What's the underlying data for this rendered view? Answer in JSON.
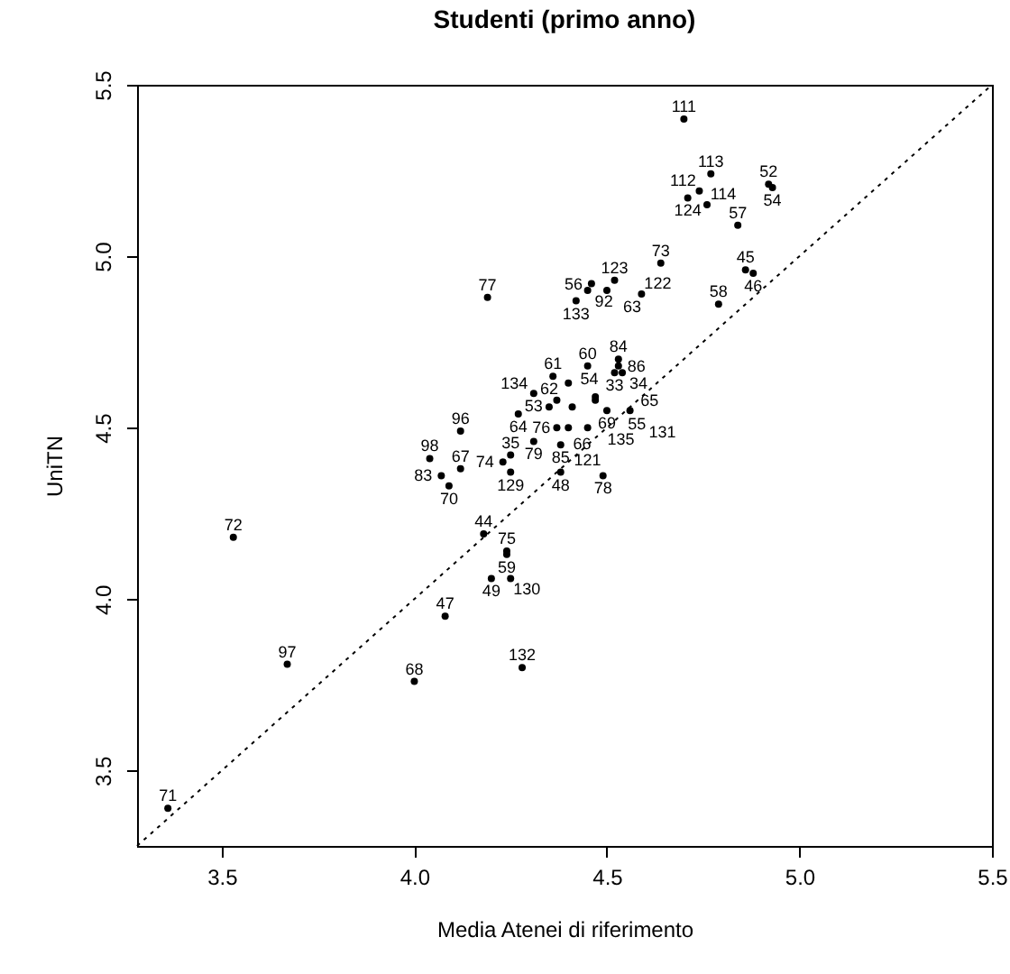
{
  "chart_data": {
    "type": "scatter",
    "title": "Studenti (primo anno)",
    "xlabel": "Media Atenei di riferimento",
    "ylabel": "UniTN",
    "xlim": [
      3.28,
      5.5
    ],
    "ylim": [
      3.28,
      5.5
    ],
    "xticks": [
      3.5,
      {
        "value": 4,
        "label": "4.0"
      },
      4.5,
      {
        "value": 5,
        "label": "5.0"
      },
      5.5
    ],
    "yticks": [
      3.5,
      {
        "value": 4,
        "label": "4.0"
      },
      4.5,
      {
        "value": 5,
        "label": "5.0"
      },
      5.5
    ],
    "series": [
      {
        "marker": "circle",
        "color": "#000000",
        "x": [
          4.7,
          4.77,
          4.74,
          4.71,
          4.76,
          4.92,
          4.93,
          4.84,
          4.64,
          4.86,
          4.88,
          4.79,
          4.19,
          4.52,
          4.46,
          4.45,
          4.5,
          4.42,
          4.59,
          4.45,
          4.53,
          4.53,
          4.52,
          4.54,
          4.36,
          4.4,
          4.31,
          4.37,
          4.47,
          4.47,
          4.35,
          4.41,
          4.5,
          4.56,
          4.27,
          4.37,
          4.4,
          4.45,
          4.12,
          4.31,
          4.38,
          4.04,
          4.25,
          4.23,
          4.12,
          4.25,
          4.38,
          4.49,
          4.07,
          4.09,
          3.53,
          4.18,
          4.24,
          4.24,
          4.2,
          4.25,
          4.08,
          3.67,
          4.0,
          4.28,
          3.36
        ],
        "values": [
          5.4,
          5.24,
          5.19,
          5.17,
          5.15,
          5.21,
          5.2,
          5.09,
          4.98,
          4.96,
          4.95,
          4.86,
          4.88,
          4.93,
          4.92,
          4.9,
          4.9,
          4.87,
          4.89,
          4.68,
          4.7,
          4.68,
          4.66,
          4.66,
          4.65,
          4.63,
          4.6,
          4.58,
          4.59,
          4.58,
          4.56,
          4.56,
          4.55,
          4.55,
          4.54,
          4.5,
          4.5,
          4.5,
          4.49,
          4.46,
          4.45,
          4.41,
          4.42,
          4.4,
          4.38,
          4.37,
          4.37,
          4.36,
          4.36,
          4.33,
          4.18,
          4.19,
          4.14,
          4.13,
          4.06,
          4.06,
          3.95,
          3.81,
          3.76,
          3.8,
          3.39
        ]
      },
      {
        "type": "line",
        "color": "#000000",
        "line_style": "dotted",
        "x": [
          3.28,
          5.5
        ],
        "values": [
          3.28,
          5.5
        ]
      }
    ],
    "annotations": [
      {
        "text": "111",
        "x": 4.7,
        "y": 5.4
      },
      {
        "text": "113",
        "x": 4.77,
        "y": 5.24
      },
      {
        "text": "112",
        "x": 4.74,
        "y": 5.19
      },
      {
        "text": "124",
        "x": 4.71,
        "y": 5.17
      },
      {
        "text": "114",
        "x": 4.76,
        "y": 5.15
      },
      {
        "text": "52",
        "x": 4.92,
        "y": 5.21
      },
      {
        "text": "54",
        "x": 4.93,
        "y": 5.2
      },
      {
        "text": "57",
        "x": 4.84,
        "y": 5.09
      },
      {
        "text": "73",
        "x": 4.64,
        "y": 4.98
      },
      {
        "text": "45",
        "x": 4.86,
        "y": 4.96
      },
      {
        "text": "46",
        "x": 4.88,
        "y": 4.95
      },
      {
        "text": "58",
        "x": 4.79,
        "y": 4.86
      },
      {
        "text": "77",
        "x": 4.19,
        "y": 4.88
      },
      {
        "text": "123",
        "x": 4.52,
        "y": 4.93
      },
      {
        "text": "56",
        "x": 4.46,
        "y": 4.92
      },
      {
        "text": "92",
        "x": 4.45,
        "y": 4.9
      },
      {
        "text": "63",
        "x": 4.5,
        "y": 4.9
      },
      {
        "text": "133",
        "x": 4.42,
        "y": 4.87
      },
      {
        "text": "122",
        "x": 4.59,
        "y": 4.89
      },
      {
        "text": "60",
        "x": 4.45,
        "y": 4.68
      },
      {
        "text": "84",
        "x": 4.53,
        "y": 4.7
      },
      {
        "text": "86",
        "x": 4.53,
        "y": 4.68
      },
      {
        "text": "33",
        "x": 4.52,
        "y": 4.66
      },
      {
        "text": "34",
        "x": 4.54,
        "y": 4.66
      },
      {
        "text": "61",
        "x": 4.36,
        "y": 4.65
      },
      {
        "text": "134",
        "x": 4.4,
        "y": 4.63
      },
      {
        "text": "53",
        "x": 4.31,
        "y": 4.6
      },
      {
        "text": "54",
        "x": 4.37,
        "y": 4.58
      },
      {
        "text": "55",
        "x": 4.47,
        "y": 4.59
      },
      {
        "text": "65",
        "x": 4.47,
        "y": 4.58
      },
      {
        "text": "62",
        "x": 4.35,
        "y": 4.56
      },
      {
        "text": "135",
        "x": 4.41,
        "y": 4.56
      },
      {
        "text": "69",
        "x": 4.5,
        "y": 4.55
      },
      {
        "text": "131",
        "x": 4.56,
        "y": 4.55
      },
      {
        "text": "64",
        "x": 4.27,
        "y": 4.54
      },
      {
        "text": "66",
        "x": 4.37,
        "y": 4.5
      },
      {
        "text": "76",
        "x": 4.4,
        "y": 4.5
      },
      {
        "text": "121",
        "x": 4.45,
        "y": 4.5
      },
      {
        "text": "96",
        "x": 4.12,
        "y": 4.49
      },
      {
        "text": "79",
        "x": 4.31,
        "y": 4.46
      },
      {
        "text": "85",
        "x": 4.38,
        "y": 4.45
      },
      {
        "text": "98",
        "x": 4.04,
        "y": 4.41
      },
      {
        "text": "35",
        "x": 4.25,
        "y": 4.42
      },
      {
        "text": "74",
        "x": 4.23,
        "y": 4.4
      },
      {
        "text": "67",
        "x": 4.12,
        "y": 4.38
      },
      {
        "text": "129",
        "x": 4.25,
        "y": 4.37
      },
      {
        "text": "48",
        "x": 4.38,
        "y": 4.37
      },
      {
        "text": "78",
        "x": 4.49,
        "y": 4.36
      },
      {
        "text": "83",
        "x": 4.07,
        "y": 4.36
      },
      {
        "text": "70",
        "x": 4.09,
        "y": 4.33
      },
      {
        "text": "72",
        "x": 3.53,
        "y": 4.18
      },
      {
        "text": "44",
        "x": 4.18,
        "y": 4.19
      },
      {
        "text": "75",
        "x": 4.24,
        "y": 4.14
      },
      {
        "text": "59",
        "x": 4.24,
        "y": 4.13
      },
      {
        "text": "49",
        "x": 4.2,
        "y": 4.06
      },
      {
        "text": "130",
        "x": 4.25,
        "y": 4.06
      },
      {
        "text": "47",
        "x": 4.08,
        "y": 3.95
      },
      {
        "text": "97",
        "x": 3.67,
        "y": 3.81
      },
      {
        "text": "68",
        "x": 4.0,
        "y": 3.76
      },
      {
        "text": "132",
        "x": 4.28,
        "y": 3.8
      },
      {
        "text": "71",
        "x": 3.36,
        "y": 3.39
      }
    ]
  }
}
